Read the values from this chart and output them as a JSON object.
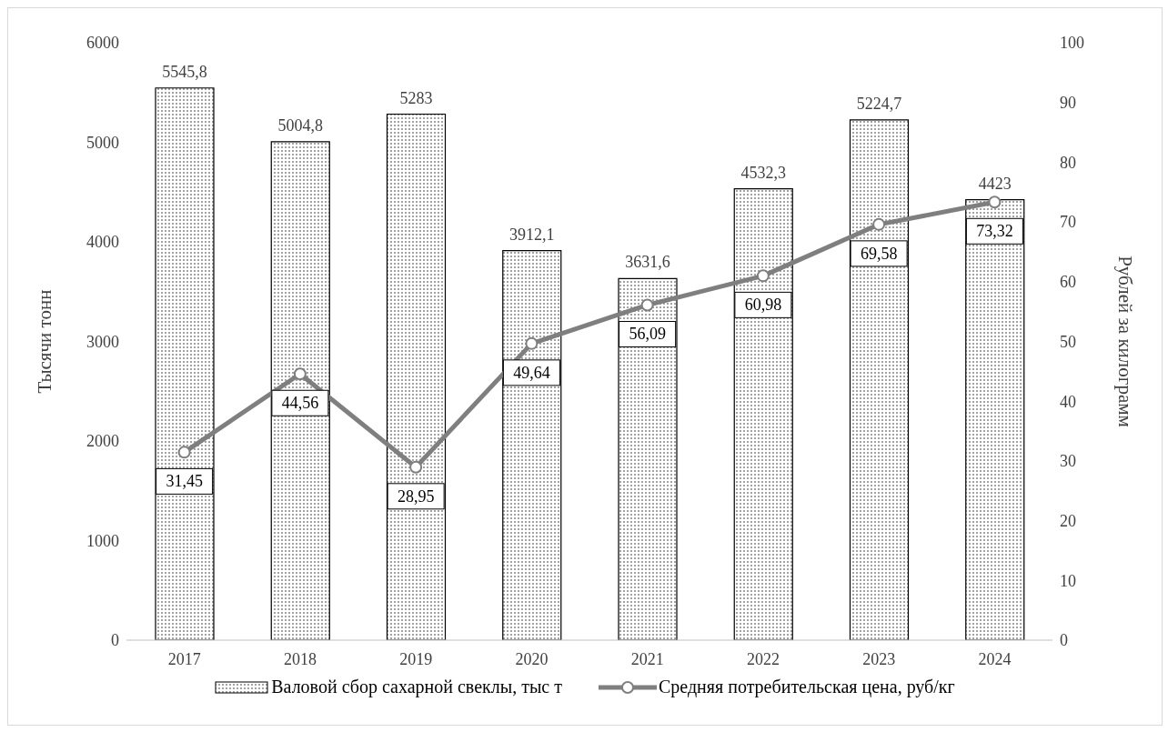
{
  "chart_data": {
    "type": "bar",
    "categories": [
      "2017",
      "2018",
      "2019",
      "2020",
      "2021",
      "2022",
      "2023",
      "2024"
    ],
    "ylabel": "Тысячи тонн",
    "y2label": "Рублей за килограмм",
    "ylim": [
      0,
      6000
    ],
    "yticks": [
      0,
      1000,
      2000,
      3000,
      4000,
      5000,
      6000
    ],
    "y2lim": [
      0,
      100
    ],
    "y2ticks": [
      0,
      10,
      20,
      30,
      40,
      50,
      60,
      70,
      80,
      90,
      100
    ],
    "grid": false,
    "legend": "bottom",
    "marker": "circle",
    "line_style": "solid",
    "series": [
      {
        "name": "Валовой сбор сахарной свеклы, тыс т",
        "color": "#000000",
        "values": [
          5545.8,
          5004.8,
          5283,
          3912.1,
          3631.6,
          4532.3,
          5224.7,
          4423
        ],
        "value_labels": [
          "5545,8",
          "5004,8",
          "5283",
          "3912,1",
          "3631,6",
          "4532,3",
          "5224,7",
          "4423"
        ]
      },
      {
        "name": "Средняя потребительская цена, руб/кг",
        "type": "line",
        "axis": "y2",
        "color": "#7f7f7f",
        "values": [
          31.45,
          44.56,
          28.95,
          49.64,
          56.09,
          60.98,
          69.58,
          73.32
        ],
        "value_labels": [
          "31,45",
          "44,56",
          "28,95",
          "49,64",
          "56,09",
          "60,98",
          "69,58",
          "73,32"
        ]
      }
    ]
  }
}
